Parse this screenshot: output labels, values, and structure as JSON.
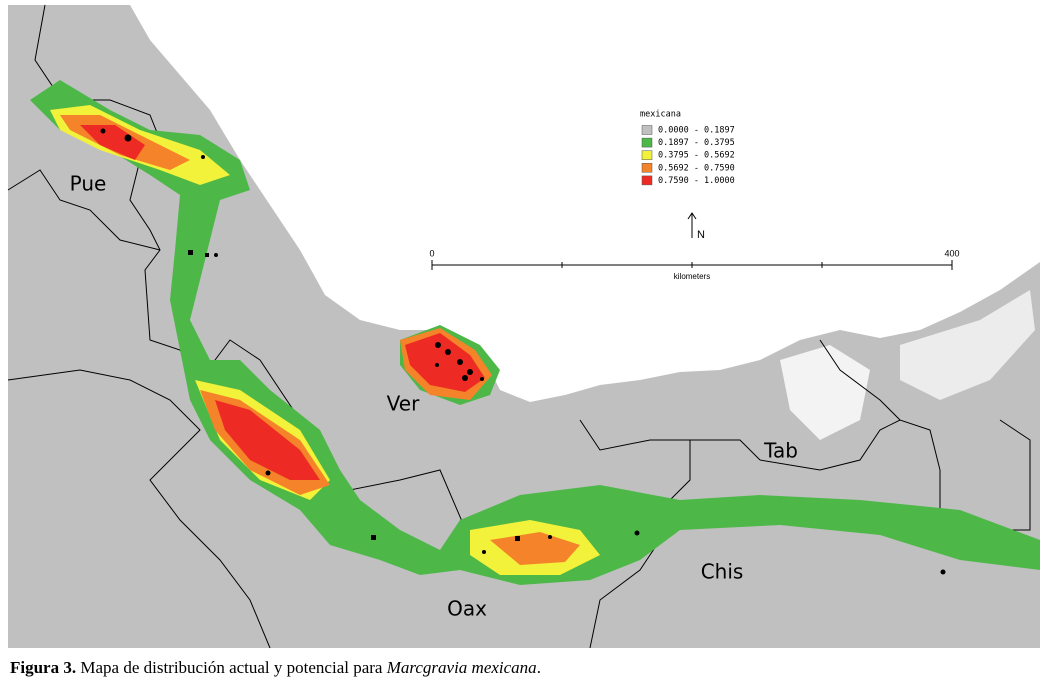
{
  "map": {
    "state_labels": [
      "Pue",
      "Ver",
      "Tab",
      "Chis",
      "Oax"
    ],
    "legend": {
      "title": "mexicana",
      "entries": [
        {
          "label": "0.0000 - 0.1897",
          "color": "#c0c0c0"
        },
        {
          "label": "0.1897 - 0.3795",
          "color": "#4db848"
        },
        {
          "label": "0.3795 - 0.5692",
          "color": "#f2f23a"
        },
        {
          "label": "0.5692 - 0.7590",
          "color": "#f5832a"
        },
        {
          "label": "0.7590 - 1.0000",
          "color": "#ee2a24"
        }
      ]
    },
    "north": "N",
    "scale": {
      "start": "0",
      "end": "400",
      "unit": "kilometers"
    }
  },
  "caption": {
    "label": "Figura 3.",
    "text": "Mapa de distribución actual y potencial para ",
    "species": "Marcgravia mexicana",
    "end": "."
  }
}
